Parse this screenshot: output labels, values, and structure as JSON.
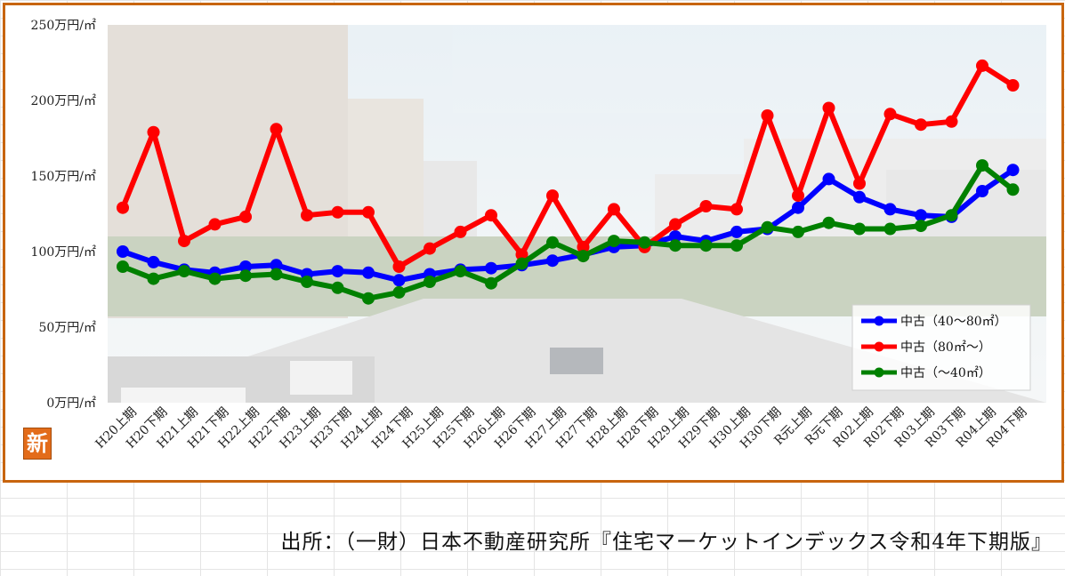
{
  "chart_data": {
    "type": "line",
    "categories": [
      "H20上期",
      "H20下期",
      "H21上期",
      "H21下期",
      "H22上期",
      "H22下期",
      "H23上期",
      "H23下期",
      "H24上期",
      "H24下期",
      "H25上期",
      "H25下期",
      "H26上期",
      "H26下期",
      "H27上期",
      "H27下期",
      "H28上期",
      "H28下期",
      "H29上期",
      "H29下期",
      "H30上期",
      "H30下期",
      "R元上期",
      "R元下期",
      "R02上期",
      "R02下期",
      "R03上期",
      "R03下期",
      "R04上期",
      "R04下期"
    ],
    "series": [
      {
        "name": "中古（40～80㎡）",
        "color": "#0000ff",
        "values": [
          100,
          93,
          88,
          86,
          90,
          91,
          85,
          87,
          86,
          81,
          85,
          88,
          89,
          91,
          94,
          98,
          103,
          104,
          110,
          107,
          113,
          115,
          129,
          148,
          136,
          128,
          124,
          123,
          140,
          154
        ]
      },
      {
        "name": "中古（80㎡～）",
        "color": "#ff0000",
        "values": [
          129,
          179,
          107,
          118,
          123,
          181,
          124,
          126,
          126,
          90,
          102,
          113,
          124,
          98,
          137,
          103,
          128,
          103,
          118,
          130,
          128,
          190,
          137,
          195,
          145,
          191,
          184,
          186,
          223,
          210
        ]
      },
      {
        "name": "中古（～40㎡）",
        "color": "#008000",
        "values": [
          90,
          82,
          87,
          82,
          84,
          85,
          80,
          76,
          69,
          73,
          80,
          87,
          79,
          92,
          106,
          97,
          107,
          106,
          104,
          104,
          104,
          116,
          113,
          119,
          115,
          115,
          117,
          124,
          157,
          141
        ]
      }
    ],
    "yticks": [
      "0万円/㎡",
      "50万円/㎡",
      "100万円/㎡",
      "150万円/㎡",
      "200万円/㎡",
      "250万円/㎡"
    ],
    "ylim": [
      0,
      250
    ],
    "legend_position": "bottom-right",
    "grid": false
  },
  "badge_text": "新",
  "source": "出所：（一財）日本不動産研究所『住宅マーケットインデックス令和4年下期版』"
}
